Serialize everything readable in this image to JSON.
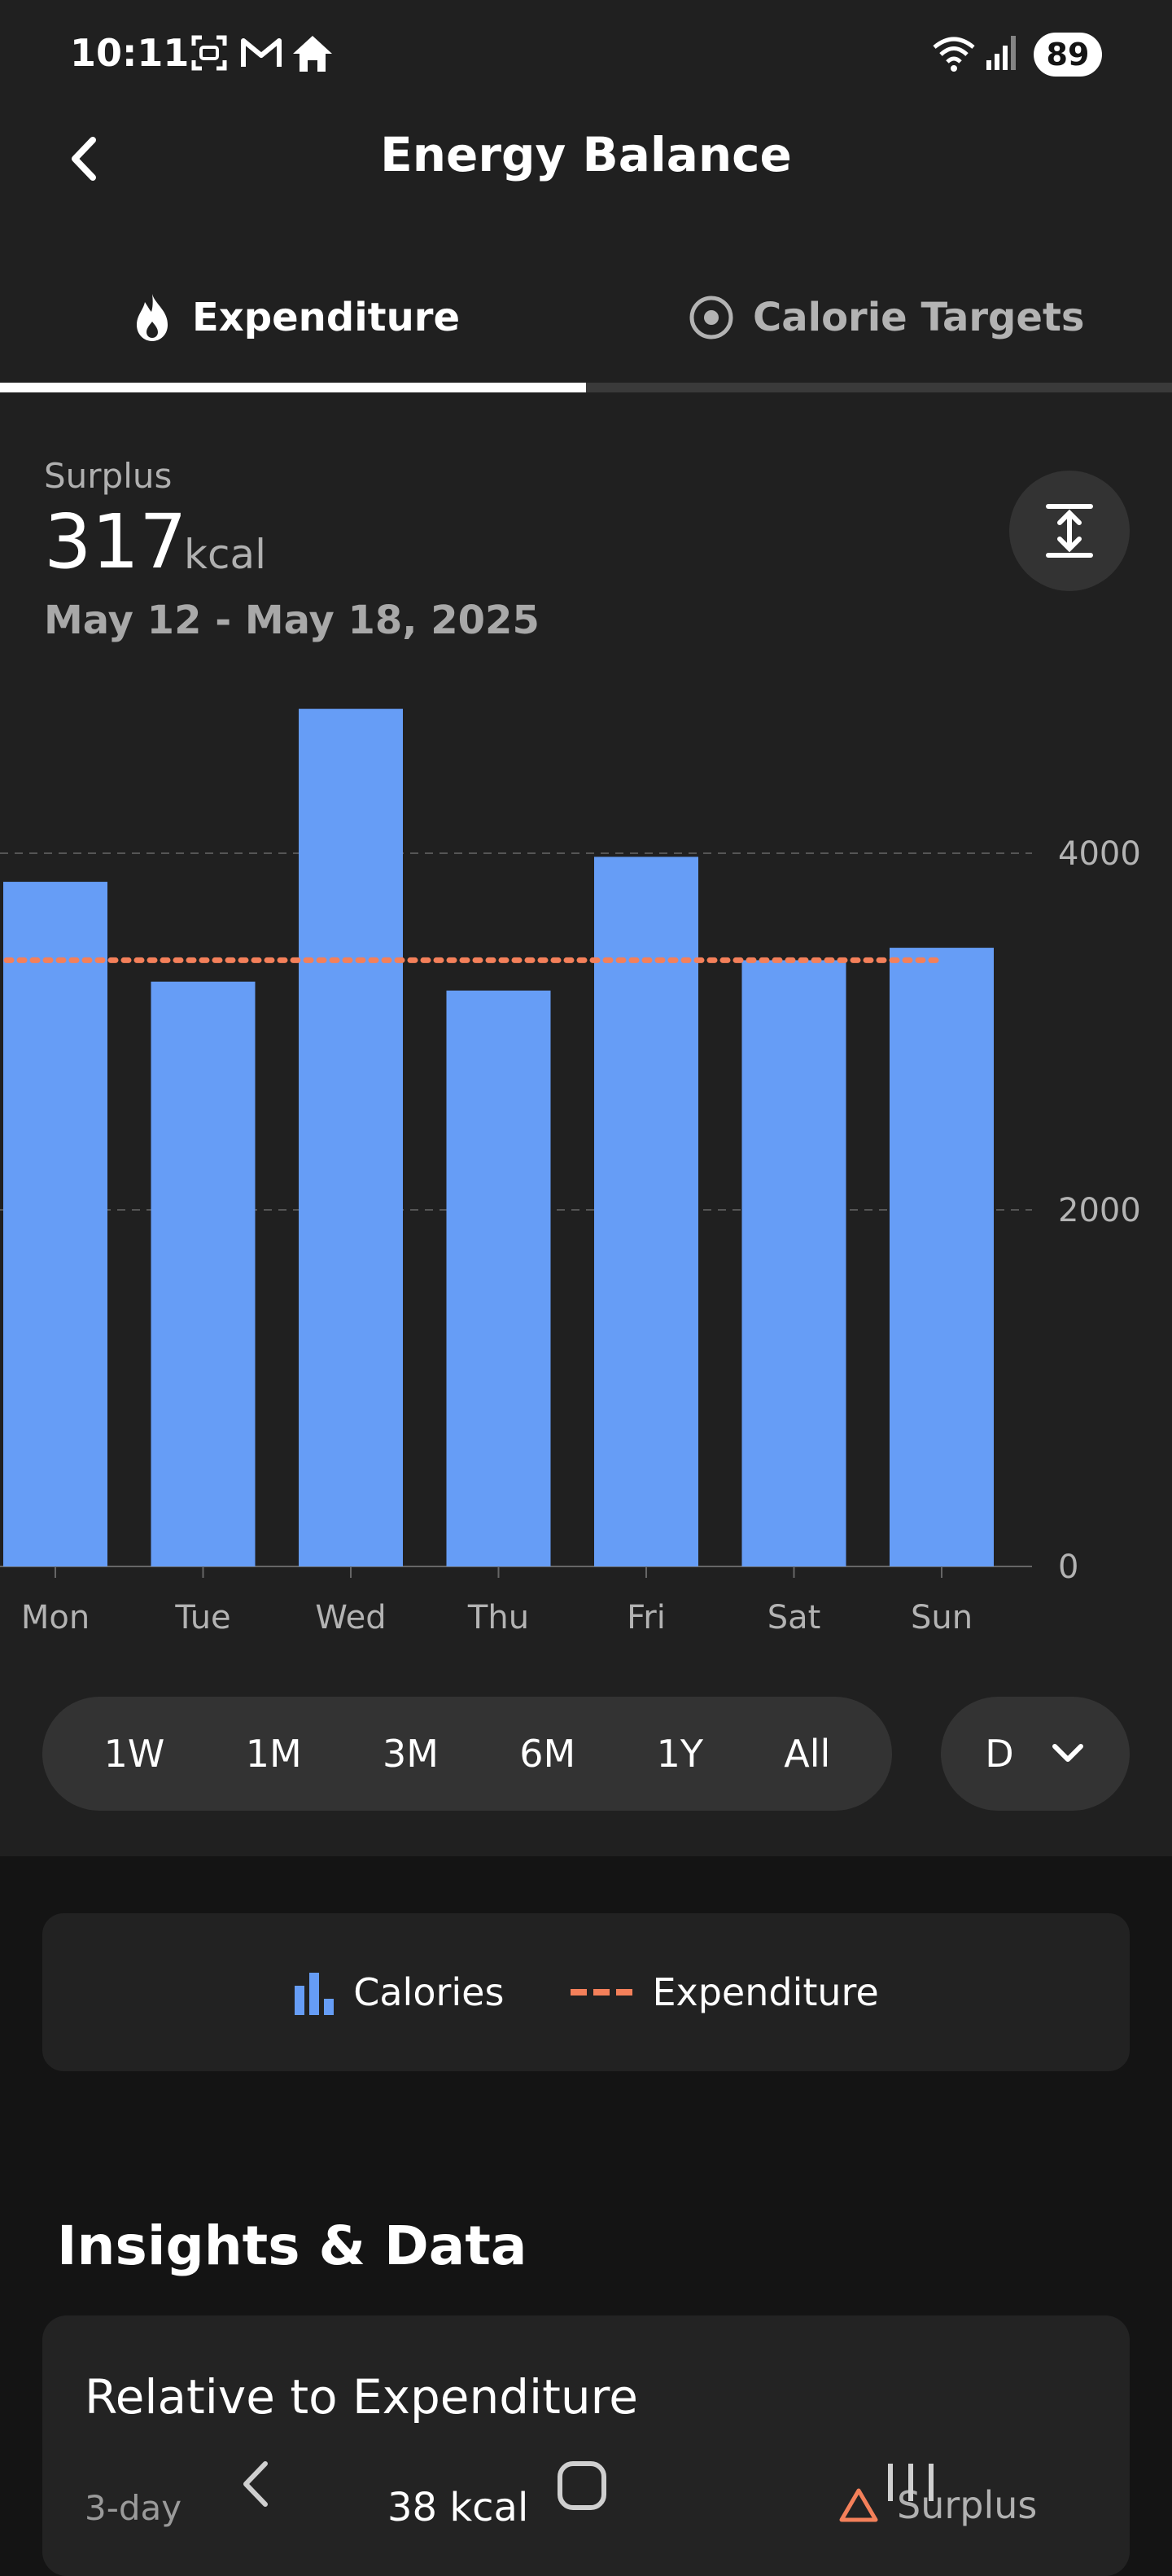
{
  "status_bar": {
    "time": "10:11",
    "battery": "89",
    "icons": [
      "screenshot-icon",
      "gmail-icon",
      "home-icon",
      "wifi-icon",
      "signal-icon",
      "battery-icon"
    ]
  },
  "header": {
    "title": "Energy Balance",
    "back_icon": "chevron-left-icon"
  },
  "tabs": [
    {
      "label": "Expenditure",
      "icon": "flame-icon",
      "active": true
    },
    {
      "label": "Calorie Targets",
      "icon": "target-icon",
      "active": false
    }
  ],
  "summary": {
    "label": "Surplus",
    "value": "317",
    "unit": "kcal",
    "date_range": "May 12 - May 18, 2025"
  },
  "chart_data": {
    "type": "bar",
    "categories": [
      "Mon",
      "Tue",
      "Wed",
      "Thu",
      "Fri",
      "Sat",
      "Sun"
    ],
    "series": [
      {
        "name": "Calories",
        "type": "bar",
        "color": "#669df6",
        "values": [
          3840,
          3280,
          4810,
          3230,
          3980,
          3400,
          3470
        ]
      },
      {
        "name": "Expenditure",
        "type": "line",
        "style": "dashed",
        "color": "#f4805a",
        "values": [
          3400,
          3400,
          3400,
          3400,
          3400,
          3400,
          3400
        ]
      }
    ],
    "yticks": [
      "0",
      "2000",
      "4000"
    ],
    "ylim": [
      0,
      4950
    ],
    "grid": true,
    "y_axis_position": "right"
  },
  "range_selector": {
    "options": [
      "1W",
      "1M",
      "3M",
      "6M",
      "1Y",
      "All"
    ],
    "selected": "1W",
    "granularity": "D"
  },
  "legend": {
    "items": [
      {
        "label": "Calories",
        "icon": "bar-chart-icon",
        "color": "#669df6"
      },
      {
        "label": "Expenditure",
        "icon": "dashed-line-icon",
        "color": "#f4805a"
      }
    ]
  },
  "insights": {
    "heading": "Insights & Data",
    "card_title": "Relative to Expenditure",
    "period": "3-day",
    "value": "38 kcal",
    "status": "Surplus"
  },
  "colors": {
    "background": "#141414",
    "surface": "#202020",
    "bar": "#669df6",
    "expenditure_line": "#f4805a"
  }
}
